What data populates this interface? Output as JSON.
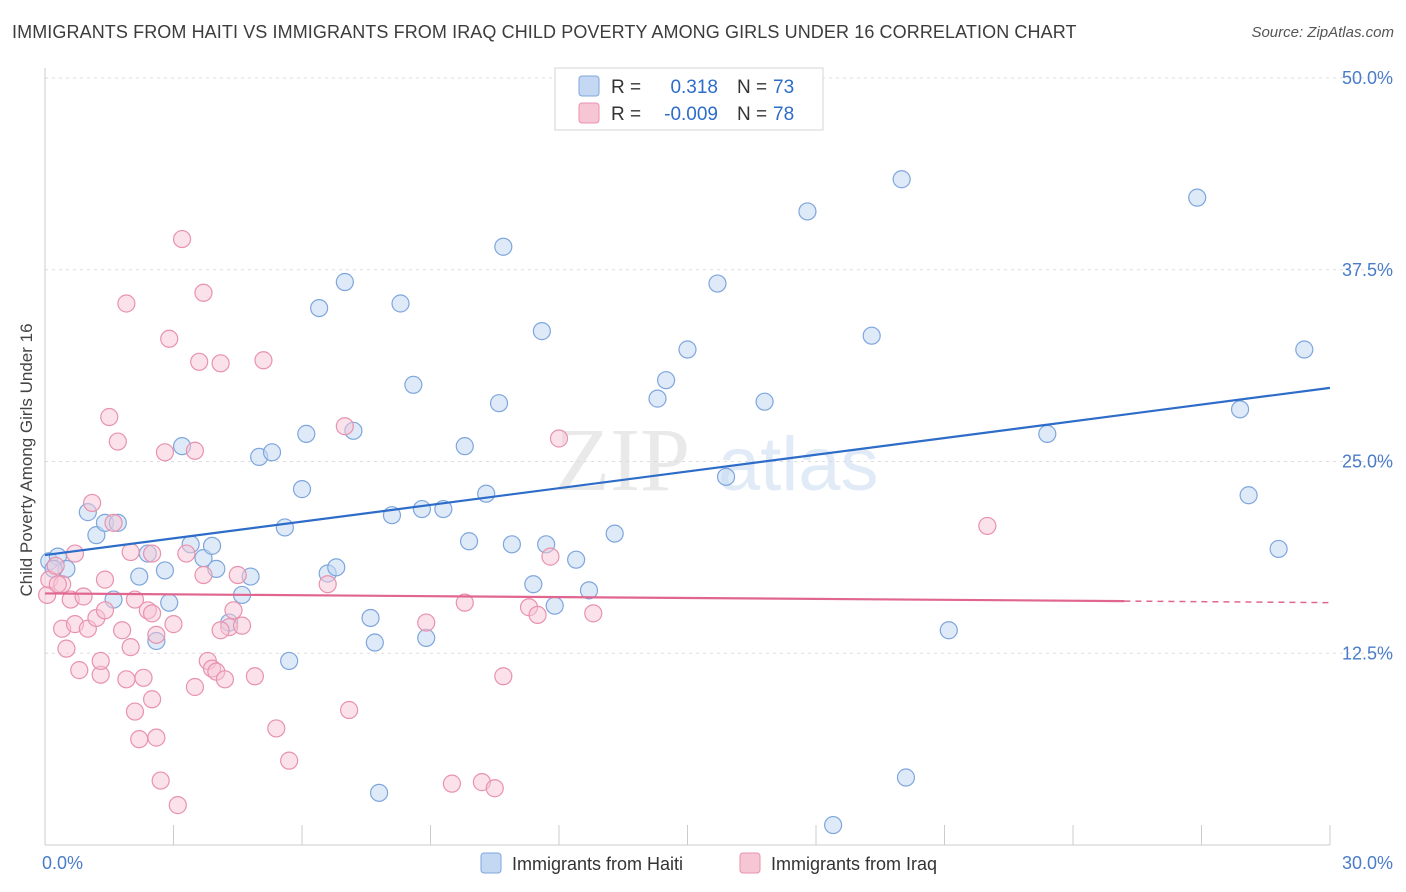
{
  "title": "IMMIGRANTS FROM HAITI VS IMMIGRANTS FROM IRAQ CHILD POVERTY AMONG GIRLS UNDER 16 CORRELATION CHART",
  "source": "Source: ZipAtlas.com",
  "watermark": {
    "zip": "ZIP",
    "atlas": "atlas"
  },
  "colors": {
    "haiti_fill": "#c5d8f3",
    "haiti_stroke": "#7ea6dd",
    "haiti_line": "#2d6cc8",
    "iraq_fill": "#f7c6d5",
    "iraq_stroke": "#e892ae",
    "iraq_line": "#e0668f",
    "tick": "#4a7cc9",
    "grid": "#dddddd"
  },
  "legend": {
    "rows": [
      {
        "r_label": "R =",
        "r_value": "0.318",
        "n_label": "N =",
        "n_value": "73"
      },
      {
        "r_label": "R =",
        "r_value": "-0.009",
        "n_label": "N =",
        "n_value": "78"
      }
    ]
  },
  "chart_data": {
    "type": "scatter",
    "title": "IMMIGRANTS FROM HAITI VS IMMIGRANTS FROM IRAQ CHILD POVERTY AMONG GIRLS UNDER 16 CORRELATION CHART",
    "xlabel": "",
    "ylabel": "Child Poverty Among Girls Under 16",
    "xlim": [
      0,
      30
    ],
    "ylim": [
      0,
      50
    ],
    "x_tick_labels": [
      "0.0%",
      "30.0%"
    ],
    "y_ticks": [
      12.5,
      25.0,
      37.5,
      50.0
    ],
    "y_tick_labels": [
      "12.5%",
      "25.0%",
      "37.5%",
      "50.0%"
    ],
    "grid": true,
    "legend_position": "top-center",
    "series": [
      {
        "name": "Immigrants from Haiti",
        "trend": {
          "x": [
            0,
            30
          ],
          "y": [
            18.9,
            29.8
          ]
        },
        "points": [
          [
            0.1,
            18.5
          ],
          [
            0.3,
            18.8
          ],
          [
            0.5,
            18.0
          ],
          [
            1.0,
            21.7
          ],
          [
            1.2,
            20.2
          ],
          [
            1.4,
            21.0
          ],
          [
            1.7,
            21.0
          ],
          [
            1.6,
            16.0
          ],
          [
            2.2,
            17.5
          ],
          [
            2.4,
            19.0
          ],
          [
            2.6,
            13.3
          ],
          [
            2.8,
            17.9
          ],
          [
            2.9,
            15.8
          ],
          [
            3.2,
            26.0
          ],
          [
            3.4,
            19.6
          ],
          [
            3.7,
            18.7
          ],
          [
            3.9,
            19.5
          ],
          [
            4.0,
            18.0
          ],
          [
            4.3,
            14.5
          ],
          [
            4.6,
            16.3
          ],
          [
            4.8,
            17.5
          ],
          [
            5.0,
            25.3
          ],
          [
            5.3,
            25.6
          ],
          [
            5.6,
            20.7
          ],
          [
            5.7,
            12.0
          ],
          [
            6.0,
            23.2
          ],
          [
            6.1,
            26.8
          ],
          [
            6.4,
            35.0
          ],
          [
            6.6,
            17.7
          ],
          [
            6.8,
            18.1
          ],
          [
            7.0,
            36.7
          ],
          [
            7.2,
            27.0
          ],
          [
            7.6,
            14.8
          ],
          [
            7.7,
            13.2
          ],
          [
            7.8,
            3.4
          ],
          [
            8.1,
            21.5
          ],
          [
            8.3,
            35.3
          ],
          [
            8.6,
            30.0
          ],
          [
            8.8,
            21.9
          ],
          [
            8.9,
            13.5
          ],
          [
            9.3,
            21.9
          ],
          [
            9.8,
            26.0
          ],
          [
            9.9,
            19.8
          ],
          [
            10.3,
            22.9
          ],
          [
            10.6,
            28.8
          ],
          [
            10.7,
            39.0
          ],
          [
            10.9,
            19.6
          ],
          [
            11.4,
            17.0
          ],
          [
            11.6,
            33.5
          ],
          [
            11.7,
            19.6
          ],
          [
            11.9,
            15.6
          ],
          [
            12.4,
            18.6
          ],
          [
            12.7,
            16.6
          ],
          [
            13.3,
            20.3
          ],
          [
            14.3,
            29.1
          ],
          [
            14.5,
            30.3
          ],
          [
            15.0,
            32.3
          ],
          [
            15.7,
            36.6
          ],
          [
            15.9,
            24.0
          ],
          [
            16.8,
            28.9
          ],
          [
            17.8,
            41.3
          ],
          [
            18.4,
            1.3
          ],
          [
            19.3,
            33.2
          ],
          [
            20.0,
            43.4
          ],
          [
            20.1,
            4.4
          ],
          [
            21.1,
            14.0
          ],
          [
            23.4,
            26.8
          ],
          [
            26.9,
            42.2
          ],
          [
            27.9,
            28.4
          ],
          [
            28.1,
            22.8
          ],
          [
            28.8,
            19.3
          ],
          [
            29.4,
            32.3
          ],
          [
            0.2,
            18.0
          ]
        ]
      },
      {
        "name": "Immigrants from Iraq",
        "trend": {
          "x": [
            0,
            25.2
          ],
          "y": [
            16.4,
            15.9
          ]
        },
        "trend_dashed": {
          "x": [
            25.2,
            30
          ],
          "y": [
            15.9,
            15.8
          ]
        },
        "points": [
          [
            0.05,
            16.3
          ],
          [
            0.1,
            17.3
          ],
          [
            0.25,
            18.2
          ],
          [
            0.4,
            17.0
          ],
          [
            0.4,
            14.1
          ],
          [
            0.5,
            12.8
          ],
          [
            0.6,
            16.0
          ],
          [
            0.7,
            14.4
          ],
          [
            0.7,
            19.0
          ],
          [
            0.8,
            11.4
          ],
          [
            0.9,
            16.2
          ],
          [
            1.0,
            14.1
          ],
          [
            1.1,
            22.3
          ],
          [
            1.2,
            14.8
          ],
          [
            1.3,
            11.1
          ],
          [
            1.3,
            12.0
          ],
          [
            1.4,
            15.3
          ],
          [
            1.5,
            27.9
          ],
          [
            1.6,
            21.0
          ],
          [
            1.7,
            26.3
          ],
          [
            1.8,
            14.0
          ],
          [
            1.9,
            10.8
          ],
          [
            1.9,
            35.3
          ],
          [
            2.0,
            12.9
          ],
          [
            2.0,
            19.1
          ],
          [
            2.1,
            8.7
          ],
          [
            2.1,
            16.0
          ],
          [
            2.2,
            6.9
          ],
          [
            2.3,
            10.9
          ],
          [
            2.4,
            15.3
          ],
          [
            2.5,
            15.1
          ],
          [
            2.5,
            9.5
          ],
          [
            2.6,
            7.0
          ],
          [
            2.6,
            13.7
          ],
          [
            2.7,
            4.2
          ],
          [
            2.8,
            25.6
          ],
          [
            2.9,
            33.0
          ],
          [
            3.0,
            14.4
          ],
          [
            3.1,
            2.6
          ],
          [
            3.2,
            39.5
          ],
          [
            3.3,
            19.0
          ],
          [
            3.5,
            25.7
          ],
          [
            3.5,
            10.3
          ],
          [
            3.6,
            31.5
          ],
          [
            3.7,
            36.0
          ],
          [
            3.7,
            17.6
          ],
          [
            3.8,
            12.0
          ],
          [
            3.9,
            11.5
          ],
          [
            4.0,
            11.3
          ],
          [
            4.1,
            31.4
          ],
          [
            4.2,
            10.8
          ],
          [
            4.3,
            14.2
          ],
          [
            4.4,
            15.3
          ],
          [
            4.5,
            17.6
          ],
          [
            4.6,
            14.3
          ],
          [
            4.9,
            11.0
          ],
          [
            5.1,
            31.6
          ],
          [
            5.4,
            7.6
          ],
          [
            5.7,
            5.5
          ],
          [
            6.6,
            17.0
          ],
          [
            7.0,
            27.3
          ],
          [
            7.1,
            8.8
          ],
          [
            8.9,
            14.5
          ],
          [
            9.5,
            4.0
          ],
          [
            9.8,
            15.8
          ],
          [
            10.2,
            4.1
          ],
          [
            10.5,
            3.7
          ],
          [
            10.7,
            11.0
          ],
          [
            11.3,
            15.5
          ],
          [
            11.5,
            15.0
          ],
          [
            11.8,
            18.8
          ],
          [
            12.0,
            26.5
          ],
          [
            12.8,
            15.1
          ],
          [
            22.0,
            20.8
          ],
          [
            0.3,
            17.0
          ],
          [
            1.4,
            17.3
          ],
          [
            2.5,
            19.0
          ],
          [
            4.1,
            14.0
          ]
        ]
      }
    ]
  },
  "bottom_legend": {
    "items": [
      {
        "label": "Immigrants from Haiti"
      },
      {
        "label": "Immigrants from Iraq"
      }
    ]
  }
}
